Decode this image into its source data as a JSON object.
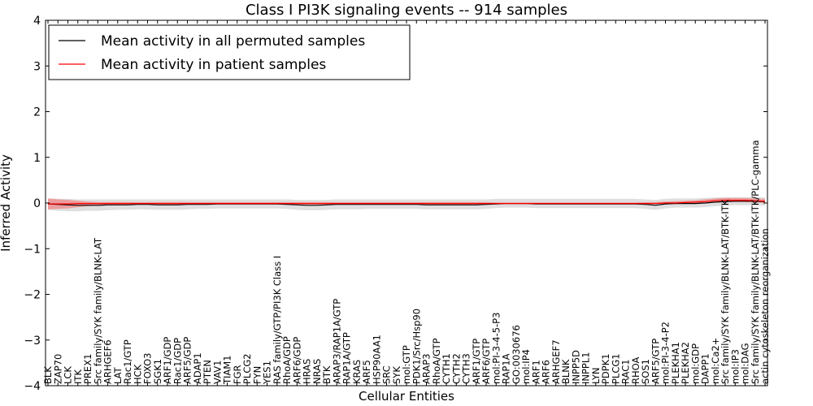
{
  "chart_data": {
    "type": "line",
    "title": "Class I PI3K signaling events -- 914 samples",
    "xlabel": "Cellular Entities",
    "ylabel": "Inferred Activity",
    "ylim": [
      -4,
      4
    ],
    "yticks": [
      -4,
      -3,
      -2,
      -1,
      0,
      1,
      2,
      3,
      4
    ],
    "grid": false,
    "legend_position": "top-left",
    "categories": [
      "BLK",
      "ZAP70",
      "LCK",
      "ITK",
      "PREX1",
      "Src family/SYK family/BLNK-LAT",
      "ARHGEF6",
      "LAT",
      "Rac1/GTP",
      "HCK",
      "FOXO3",
      "SGK1",
      "ARF1/GDP",
      "Rac1/GDP",
      "ARF5/GDP",
      "ADAP1",
      "PTEN",
      "VAV1",
      "TIAM1",
      "FGR",
      "PLCG2",
      "FYN",
      "YES1",
      "RAS family/GTP/PI3K Class I",
      "RhoA/GDP",
      "ARF6/GDP",
      "HRAS",
      "NRAS",
      "BTK",
      "ARAP3/RAP1A/GTP",
      "RAP1A/GTP",
      "KRAS",
      "ARF5",
      "HSP90AA1",
      "SRC",
      "SYK",
      "mol:GTP",
      "PDK1/Src/Hsp90",
      "ARAP3",
      "RhoA/GTP",
      "CYTH1",
      "CYTH2",
      "CYTH3",
      "ARF1/GTP",
      "ARF6/GTP",
      "mol:PI-3-4-5-P3",
      "RAP1A",
      "GO:0030676",
      "mol:IP4",
      "ARF1",
      "ARF6",
      "ARHGEF7",
      "BLNK",
      "INPP5D",
      "INPPL1",
      "LYN",
      "PDPK1",
      "PLCG1",
      "RAC1",
      "RHOA",
      "SOS1",
      "ARF5/GTP",
      "mol:PI-3-4-P2",
      "PLEKHA1",
      "PLEKHA2",
      "mol:GDP",
      "DAPP1",
      "mol:Ca2+",
      "Src family/SYK family/BLNK-LAT/BTK-ITK",
      "mol:IP3",
      "mol:DAG",
      "Src family/SYK family/BLNK-LAT/BTK-ITK/PLC-gamma",
      "actin cytoskeleton reorganization"
    ],
    "series": [
      {
        "name": "Mean activity in all permuted samples",
        "color": "#000000",
        "band_color": "#d9d9d9",
        "values": [
          -0.02,
          -0.03,
          -0.04,
          -0.05,
          -0.05,
          -0.05,
          -0.04,
          -0.04,
          -0.04,
          -0.03,
          -0.03,
          -0.04,
          -0.04,
          -0.04,
          -0.03,
          -0.03,
          -0.03,
          -0.02,
          -0.02,
          -0.02,
          -0.02,
          -0.02,
          -0.02,
          -0.02,
          -0.03,
          -0.04,
          -0.05,
          -0.05,
          -0.04,
          -0.03,
          -0.03,
          -0.03,
          -0.03,
          -0.03,
          -0.03,
          -0.03,
          -0.03,
          -0.03,
          -0.04,
          -0.04,
          -0.04,
          -0.04,
          -0.04,
          -0.04,
          -0.03,
          -0.02,
          -0.01,
          -0.01,
          -0.01,
          -0.02,
          -0.02,
          -0.02,
          -0.02,
          -0.02,
          -0.02,
          -0.02,
          -0.02,
          -0.02,
          -0.02,
          -0.02,
          -0.03,
          -0.05,
          -0.02,
          -0.01,
          -0.01,
          -0.01,
          0.0,
          0.02,
          0.03,
          0.04,
          0.04,
          0.04,
          0.03
        ],
        "band_lower": [
          -0.15,
          -0.17,
          -0.18,
          -0.18,
          -0.17,
          -0.17,
          -0.16,
          -0.15,
          -0.15,
          -0.14,
          -0.14,
          -0.15,
          -0.15,
          -0.15,
          -0.14,
          -0.13,
          -0.13,
          -0.12,
          -0.12,
          -0.12,
          -0.12,
          -0.12,
          -0.12,
          -0.12,
          -0.13,
          -0.15,
          -0.16,
          -0.16,
          -0.15,
          -0.14,
          -0.14,
          -0.14,
          -0.13,
          -0.13,
          -0.13,
          -0.13,
          -0.13,
          -0.13,
          -0.14,
          -0.14,
          -0.14,
          -0.14,
          -0.14,
          -0.14,
          -0.13,
          -0.11,
          -0.1,
          -0.1,
          -0.1,
          -0.11,
          -0.11,
          -0.11,
          -0.11,
          -0.11,
          -0.11,
          -0.11,
          -0.11,
          -0.11,
          -0.11,
          -0.11,
          -0.13,
          -0.15,
          -0.12,
          -0.1,
          -0.1,
          -0.1,
          -0.09,
          -0.07,
          -0.06,
          -0.05,
          -0.05,
          -0.05,
          -0.06
        ],
        "band_upper": [
          0.1,
          0.09,
          0.09,
          0.08,
          0.08,
          0.08,
          0.08,
          0.08,
          0.08,
          0.08,
          0.08,
          0.08,
          0.08,
          0.08,
          0.08,
          0.08,
          0.08,
          0.08,
          0.08,
          0.08,
          0.08,
          0.08,
          0.08,
          0.08,
          0.08,
          0.07,
          0.07,
          0.07,
          0.07,
          0.08,
          0.08,
          0.08,
          0.08,
          0.08,
          0.08,
          0.08,
          0.08,
          0.08,
          0.08,
          0.08,
          0.08,
          0.08,
          0.08,
          0.08,
          0.08,
          0.09,
          0.09,
          0.09,
          0.09,
          0.09,
          0.09,
          0.09,
          0.09,
          0.09,
          0.09,
          0.09,
          0.09,
          0.09,
          0.09,
          0.09,
          0.08,
          0.07,
          0.09,
          0.1,
          0.1,
          0.1,
          0.11,
          0.12,
          0.13,
          0.13,
          0.13,
          0.13,
          0.12
        ]
      },
      {
        "name": "Mean activity in patient samples",
        "color": "#ff0000",
        "band_color": "#f08080",
        "values": [
          -0.02,
          -0.02,
          -0.02,
          -0.01,
          -0.01,
          -0.01,
          -0.01,
          -0.01,
          -0.01,
          -0.01,
          -0.01,
          -0.01,
          -0.01,
          -0.01,
          -0.01,
          -0.01,
          -0.01,
          -0.01,
          -0.01,
          -0.01,
          -0.01,
          -0.01,
          -0.01,
          -0.01,
          -0.01,
          -0.01,
          -0.01,
          -0.01,
          -0.01,
          -0.01,
          -0.01,
          -0.01,
          -0.01,
          -0.01,
          -0.01,
          -0.01,
          -0.01,
          -0.01,
          -0.01,
          -0.01,
          -0.01,
          -0.01,
          -0.01,
          -0.01,
          -0.01,
          -0.01,
          -0.01,
          -0.01,
          -0.01,
          -0.01,
          -0.01,
          -0.01,
          -0.01,
          -0.01,
          -0.01,
          -0.01,
          -0.01,
          -0.01,
          -0.01,
          -0.01,
          -0.01,
          -0.01,
          0.0,
          0.0,
          0.01,
          0.02,
          0.03,
          0.05,
          0.06,
          0.06,
          0.06,
          0.05,
          0.04
        ],
        "band_lower": [
          -0.14,
          -0.13,
          -0.12,
          -0.09,
          -0.07,
          -0.06,
          -0.05,
          -0.04,
          -0.03,
          -0.03,
          -0.03,
          -0.03,
          -0.03,
          -0.03,
          -0.03,
          -0.03,
          -0.03,
          -0.03,
          -0.03,
          -0.03,
          -0.03,
          -0.03,
          -0.03,
          -0.03,
          -0.03,
          -0.03,
          -0.03,
          -0.03,
          -0.03,
          -0.03,
          -0.03,
          -0.03,
          -0.03,
          -0.03,
          -0.03,
          -0.03,
          -0.03,
          -0.03,
          -0.03,
          -0.03,
          -0.03,
          -0.03,
          -0.03,
          -0.03,
          -0.03,
          -0.02,
          -0.02,
          -0.02,
          -0.02,
          -0.02,
          -0.02,
          -0.02,
          -0.02,
          -0.02,
          -0.02,
          -0.02,
          -0.02,
          -0.02,
          -0.02,
          -0.02,
          -0.02,
          -0.02,
          -0.01,
          -0.01,
          0.0,
          0.0,
          0.0,
          0.01,
          0.02,
          0.02,
          0.02,
          0.01,
          0.0
        ],
        "band_upper": [
          0.1,
          0.08,
          0.07,
          0.05,
          0.03,
          0.02,
          0.02,
          0.02,
          0.02,
          0.02,
          0.02,
          0.02,
          0.02,
          0.02,
          0.02,
          0.02,
          0.02,
          0.02,
          0.02,
          0.02,
          0.02,
          0.02,
          0.02,
          0.02,
          0.02,
          0.02,
          0.02,
          0.02,
          0.02,
          0.02,
          0.02,
          0.02,
          0.02,
          0.02,
          0.02,
          0.02,
          0.02,
          0.02,
          0.02,
          0.02,
          0.02,
          0.02,
          0.02,
          0.02,
          0.02,
          0.01,
          0.01,
          0.01,
          0.01,
          0.01,
          0.01,
          0.01,
          0.01,
          0.01,
          0.01,
          0.01,
          0.01,
          0.01,
          0.01,
          0.01,
          0.02,
          0.02,
          0.03,
          0.04,
          0.05,
          0.06,
          0.08,
          0.1,
          0.11,
          0.11,
          0.11,
          0.1,
          0.09
        ]
      }
    ]
  }
}
